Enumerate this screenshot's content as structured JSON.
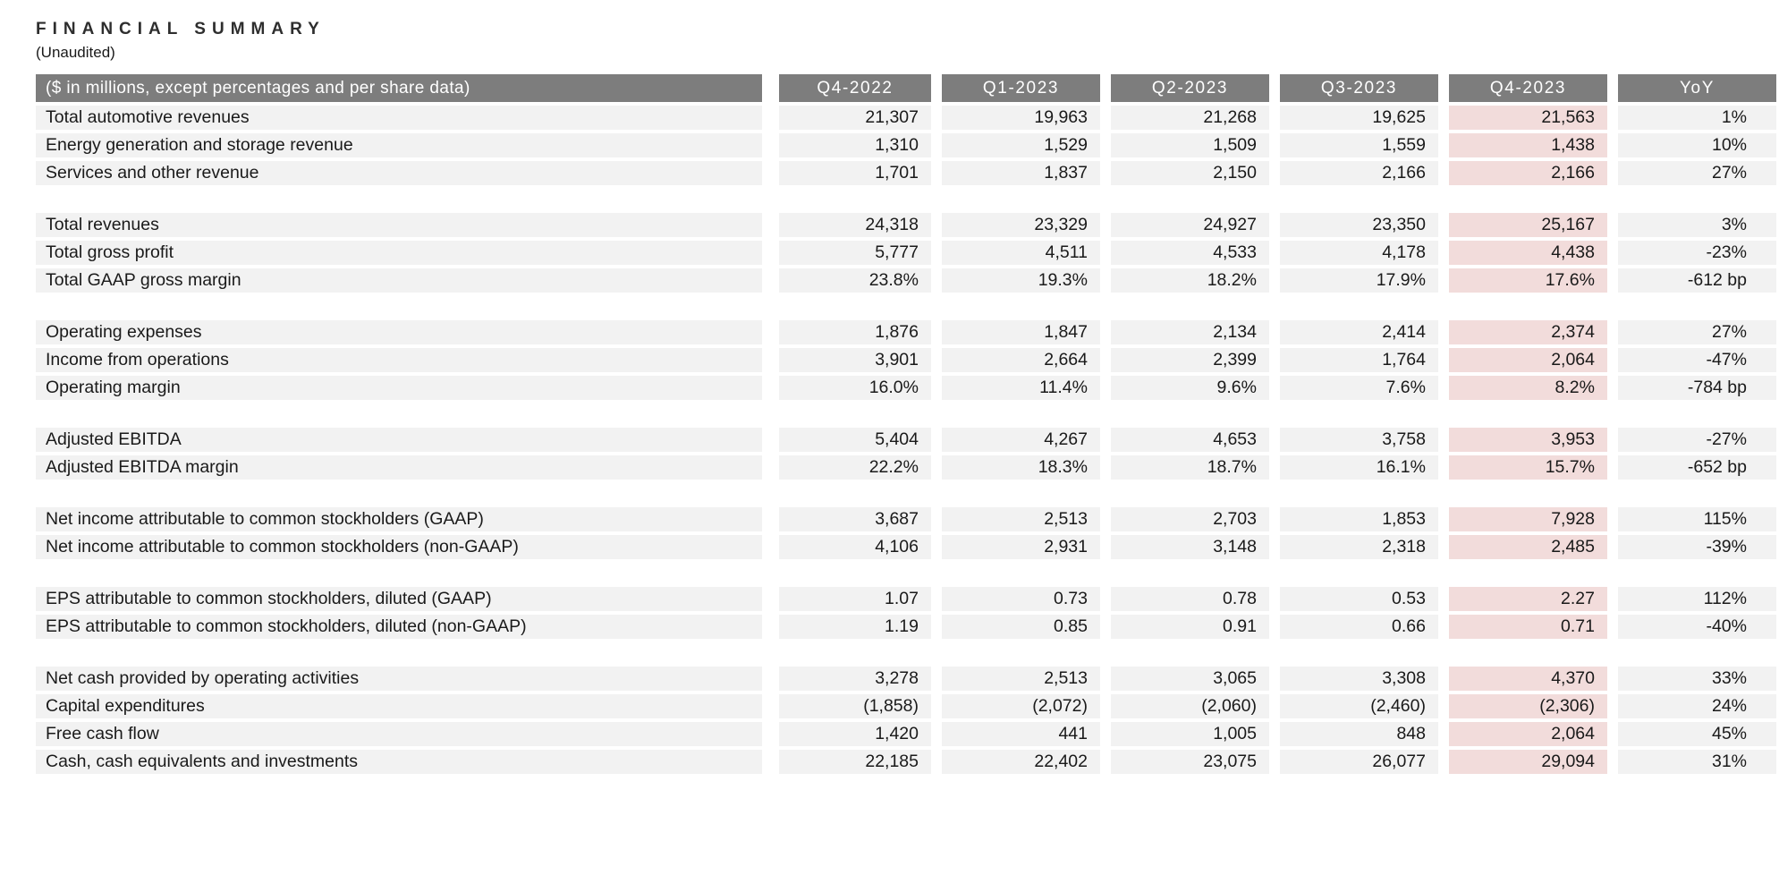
{
  "page": {
    "title": "FINANCIAL SUMMARY",
    "subtitle": "(Unaudited)"
  },
  "colors": {
    "header_bg": "#7d7d7d",
    "header_text": "#ffffff",
    "row_bg": "#f2f2f2",
    "highlight_bg": "#f2dcdb",
    "text": "#1a1a1a"
  },
  "table": {
    "header": [
      "($ in millions, except percentages and per share data)",
      "Q4-2022",
      "Q1-2023",
      "Q2-2023",
      "Q3-2023",
      "Q4-2023",
      "YoY"
    ],
    "highlighted_column": "Q4-2023",
    "rows": [
      {
        "type": "data",
        "label": "Total automotive revenues",
        "values": [
          "21,307",
          "19,963",
          "21,268",
          "19,625",
          "21,563",
          "1%"
        ]
      },
      {
        "type": "data",
        "label": "Energy generation and storage revenue",
        "values": [
          "1,310",
          "1,529",
          "1,509",
          "1,559",
          "1,438",
          "10%"
        ]
      },
      {
        "type": "data",
        "label": "Services and other revenue",
        "values": [
          "1,701",
          "1,837",
          "2,150",
          "2,166",
          "2,166",
          "27%"
        ]
      },
      {
        "type": "spacer"
      },
      {
        "type": "data",
        "label": "Total revenues",
        "values": [
          "24,318",
          "23,329",
          "24,927",
          "23,350",
          "25,167",
          "3%"
        ]
      },
      {
        "type": "data",
        "label": "Total gross profit",
        "values": [
          "5,777",
          "4,511",
          "4,533",
          "4,178",
          "4,438",
          "-23%"
        ]
      },
      {
        "type": "data",
        "label": "Total GAAP gross margin",
        "values": [
          "23.8%",
          "19.3%",
          "18.2%",
          "17.9%",
          "17.6%",
          "-612 bp"
        ]
      },
      {
        "type": "spacer"
      },
      {
        "type": "data",
        "label": "Operating expenses",
        "values": [
          "1,876",
          "1,847",
          "2,134",
          "2,414",
          "2,374",
          "27%"
        ]
      },
      {
        "type": "data",
        "label": "Income from operations",
        "values": [
          "3,901",
          "2,664",
          "2,399",
          "1,764",
          "2,064",
          "-47%"
        ]
      },
      {
        "type": "data",
        "label": "Operating margin",
        "values": [
          "16.0%",
          "11.4%",
          "9.6%",
          "7.6%",
          "8.2%",
          "-784 bp"
        ]
      },
      {
        "type": "spacer"
      },
      {
        "type": "data",
        "label": "Adjusted EBITDA",
        "values": [
          "5,404",
          "4,267",
          "4,653",
          "3,758",
          "3,953",
          "-27%"
        ]
      },
      {
        "type": "data",
        "label": "Adjusted EBITDA margin",
        "values": [
          "22.2%",
          "18.3%",
          "18.7%",
          "16.1%",
          "15.7%",
          "-652 bp"
        ]
      },
      {
        "type": "spacer"
      },
      {
        "type": "data",
        "label": "Net income attributable to common stockholders (GAAP)",
        "values": [
          "3,687",
          "2,513",
          "2,703",
          "1,853",
          "7,928",
          "115%"
        ]
      },
      {
        "type": "data",
        "label": "Net income attributable to common stockholders (non-GAAP)",
        "values": [
          "4,106",
          "2,931",
          "3,148",
          "2,318",
          "2,485",
          "-39%"
        ]
      },
      {
        "type": "spacer"
      },
      {
        "type": "data",
        "label": "EPS attributable to common stockholders, diluted (GAAP)",
        "values": [
          "1.07",
          "0.73",
          "0.78",
          "0.53",
          "2.27",
          "112%"
        ]
      },
      {
        "type": "data",
        "label": "EPS attributable to common stockholders, diluted (non-GAAP)",
        "values": [
          "1.19",
          "0.85",
          "0.91",
          "0.66",
          "0.71",
          "-40%"
        ]
      },
      {
        "type": "spacer"
      },
      {
        "type": "data",
        "label": "Net cash provided by operating activities",
        "values": [
          "3,278",
          "2,513",
          "3,065",
          "3,308",
          "4,370",
          "33%"
        ]
      },
      {
        "type": "data",
        "label": "Capital expenditures",
        "values": [
          "(1,858)",
          "(2,072)",
          "(2,060)",
          "(2,460)",
          "(2,306)",
          "24%"
        ]
      },
      {
        "type": "data",
        "label": "Free cash flow",
        "values": [
          "1,420",
          "441",
          "1,005",
          "848",
          "2,064",
          "45%"
        ]
      },
      {
        "type": "data",
        "label": "Cash, cash equivalents and investments",
        "values": [
          "22,185",
          "22,402",
          "23,075",
          "26,077",
          "29,094",
          "31%"
        ]
      }
    ]
  }
}
